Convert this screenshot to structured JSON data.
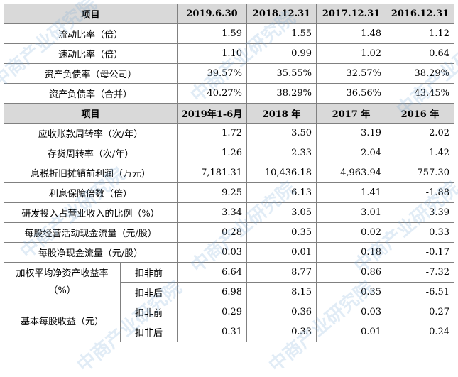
{
  "header1": [
    "项目",
    "2019.6.30",
    "2018.12.31",
    "2017.12.31",
    "2016.12.31"
  ],
  "rows1": [
    {
      "label": "流动比率（倍）",
      "values": [
        "1.59",
        "1.55",
        "1.48",
        "1.12"
      ]
    },
    {
      "label": "速动比率（倍）",
      "values": [
        "1.10",
        "0.99",
        "1.02",
        "0.64"
      ]
    },
    {
      "label": "资产负债率（母公司）",
      "values": [
        "39.57%",
        "35.55%",
        "32.57%",
        "38.29%"
      ]
    },
    {
      "label": "资产负债率（合并）",
      "values": [
        "40.27%",
        "38.29%",
        "36.56%",
        "43.45%"
      ]
    }
  ],
  "header2": [
    "项目",
    "2019年1-6月",
    "2018 年",
    "2017 年",
    "2016 年"
  ],
  "rows2": [
    {
      "label": "应收账款周转率（次/年）",
      "values": [
        "1.72",
        "3.50",
        "3.19",
        "2.02"
      ]
    },
    {
      "label": "存货周转率（次/年）",
      "values": [
        "1.26",
        "2.33",
        "2.04",
        "1.42"
      ]
    },
    {
      "label": "息税折旧摊销前利润（万元）",
      "values": [
        "7,181.31",
        "10,436.18",
        "4,963.94",
        "757.30"
      ]
    },
    {
      "label": "利息保障倍数（倍）",
      "values": [
        "9.25",
        "6.13",
        "1.41",
        "-1.88"
      ]
    },
    {
      "label": "研发投入占营业收入的比例（%）",
      "values": [
        "3.34",
        "3.05",
        "3.01",
        "3.39"
      ]
    },
    {
      "label": "每股经营活动现金流量（元/股）",
      "values": [
        "0.28",
        "0.35",
        "0.02",
        "0.33"
      ]
    },
    {
      "label": "每股净现金流量（元/股）",
      "values": [
        "0.03",
        "0.01",
        "0.18",
        "-0.17"
      ]
    }
  ],
  "roe": {
    "label": "加权平均净资产收益率（%）",
    "rows": [
      {
        "sub": "扣非前",
        "values": [
          "6.64",
          "8.77",
          "0.86",
          "-7.32"
        ]
      },
      {
        "sub": "扣非后",
        "values": [
          "6.98",
          "8.15",
          "0.35",
          "-6.51"
        ]
      }
    ]
  },
  "eps": {
    "label": "基本每股收益（元）",
    "rows": [
      {
        "sub": "扣非前",
        "values": [
          "0.29",
          "0.36",
          "0.03",
          "-0.27"
        ]
      },
      {
        "sub": "扣非后",
        "values": [
          "0.31",
          "0.33",
          "0.01",
          "-0.24"
        ]
      }
    ]
  },
  "watermark": "中商产业研究院"
}
